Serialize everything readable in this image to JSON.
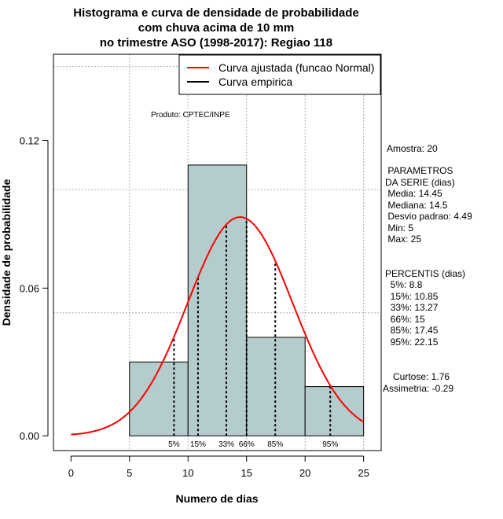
{
  "chart_data": {
    "type": "bar",
    "title_lines": [
      "Histograma e curva de densidade de probabilidade",
      "com chuva acima de 10 mm",
      "no trimestre ASO (1998-2017): Regiao 118"
    ],
    "xlabel": "Numero de dias",
    "ylabel": "Densidade de probabilidade",
    "xlim": [
      -1.5,
      26.5
    ],
    "ylim": [
      -0.006,
      0.155
    ],
    "x_ticks": [
      0,
      5,
      10,
      15,
      20,
      25
    ],
    "x_tick_labels": [
      "0",
      "5",
      "10",
      "15",
      "20",
      "25"
    ],
    "y_ticks": [
      0,
      0.06,
      0.12
    ],
    "y_tick_labels": [
      "0.00",
      "0.06",
      "0.12"
    ],
    "grid": true,
    "grid_x": [
      5,
      10,
      15,
      20,
      25
    ],
    "grid_y": [
      0.05,
      0.1,
      0.15
    ],
    "bins": [
      {
        "x0": 5,
        "x1": 10,
        "density": 0.03
      },
      {
        "x0": 10,
        "x1": 15,
        "density": 0.11
      },
      {
        "x0": 15,
        "x1": 20,
        "density": 0.04
      },
      {
        "x0": 20,
        "x1": 25,
        "density": 0.02
      }
    ],
    "normal_curve": {
      "mean": 14.45,
      "sd": 4.49,
      "from": 0,
      "to": 25
    },
    "percentiles": [
      {
        "label": "5%",
        "value": 8.8
      },
      {
        "label": "15%",
        "value": 10.85
      },
      {
        "label": "33%",
        "value": 13.27
      },
      {
        "label": "66%",
        "value": 15
      },
      {
        "label": "85%",
        "value": 17.45
      },
      {
        "label": "95%",
        "value": 22.15
      }
    ],
    "legend": {
      "position": "top-right",
      "entries": [
        {
          "label": "Curva ajustada (funcao Normal)",
          "color": "#ff0000"
        },
        {
          "label": "Curva empirica",
          "color": "#000000"
        }
      ]
    },
    "bar_color": "#b5cccc",
    "curve_color": "#ff0000",
    "annotation": "Produto: CPTEC/INPE"
  },
  "stats_panel": [
    "Amostra: 20",
    " PARAMETROS",
    "DA SERIE (dias)",
    " Media: 14.45",
    " Mediana: 14.5",
    " Desvio padrao: 4.49",
    " Min: 5",
    " Max: 25",
    "PERCENTIS (dias)",
    "  5%: 8.8",
    "  15%: 10.85",
    "  33%: 13.27",
    "  66%: 15",
    "  85%: 17.45",
    "  95%: 22.15",
    "Curtose: 1.76",
    "Assimetria: -0.29"
  ]
}
